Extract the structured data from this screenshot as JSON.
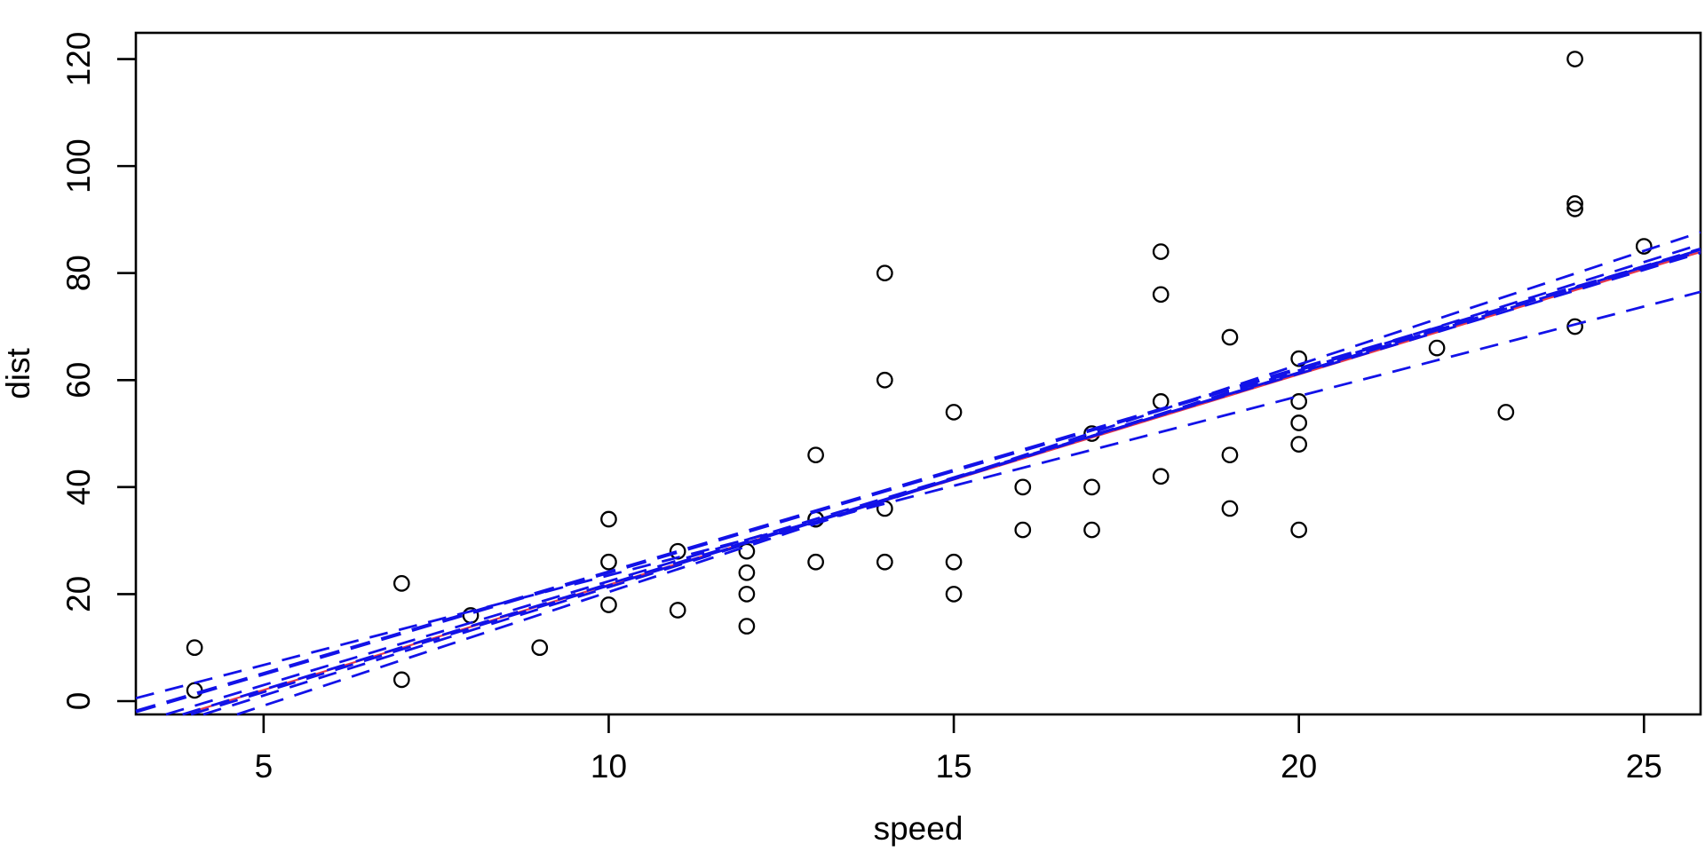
{
  "figure": {
    "background": "#ffffff",
    "axis_color": "#000000"
  },
  "chart_data": {
    "type": "scatter",
    "title": "",
    "xlabel": "speed",
    "ylabel": "dist",
    "x_ticks": [
      5,
      10,
      15,
      20,
      25
    ],
    "y_ticks": [
      0,
      20,
      40,
      60,
      80,
      100,
      120
    ],
    "x_range": [
      3.149,
      25.82
    ],
    "y_range": [
      -2.49,
      124.9
    ],
    "grid": false,
    "legend": "none",
    "point_color": "#000000",
    "points": {
      "speed": [
        4,
        4,
        7,
        7,
        8,
        9,
        10,
        10,
        10,
        11,
        11,
        12,
        12,
        12,
        12,
        13,
        13,
        13,
        13,
        14,
        14,
        14,
        14,
        15,
        15,
        15,
        16,
        16,
        17,
        17,
        17,
        18,
        18,
        18,
        18,
        19,
        19,
        19,
        20,
        20,
        20,
        20,
        20,
        22,
        23,
        24,
        24,
        24,
        24,
        25
      ],
      "dist": [
        2,
        10,
        4,
        22,
        16,
        10,
        18,
        26,
        34,
        17,
        28,
        14,
        20,
        24,
        28,
        26,
        34,
        34,
        46,
        26,
        36,
        60,
        80,
        20,
        26,
        54,
        32,
        40,
        32,
        40,
        50,
        42,
        56,
        76,
        84,
        36,
        46,
        68,
        32,
        48,
        52,
        56,
        64,
        66,
        54,
        70,
        92,
        93,
        120,
        85
      ]
    },
    "regression_line": {
      "name": "ols-fit",
      "slope": 3.932,
      "intercept": -17.579,
      "color": "#e8394a",
      "style": "solid",
      "width": 2.2
    },
    "bootstrap_lines": {
      "color": "#1212e8",
      "style": "dashed",
      "lines": [
        {
          "slope": 4.25,
          "intercept": -22.1,
          "width": 2.8
        },
        {
          "slope": 4.05,
          "intercept": -19.2,
          "width": 2.8
        },
        {
          "slope": 3.98,
          "intercept": -18.2,
          "width": 2.8
        },
        {
          "slope": 3.95,
          "intercept": -17.6,
          "width": 2.8
        },
        {
          "slope": 3.88,
          "intercept": -16.4,
          "width": 2.8
        },
        {
          "slope": 3.8,
          "intercept": -13.9,
          "width": 4.2
        },
        {
          "slope": 3.35,
          "intercept": -10.0,
          "width": 2.8
        }
      ]
    }
  }
}
